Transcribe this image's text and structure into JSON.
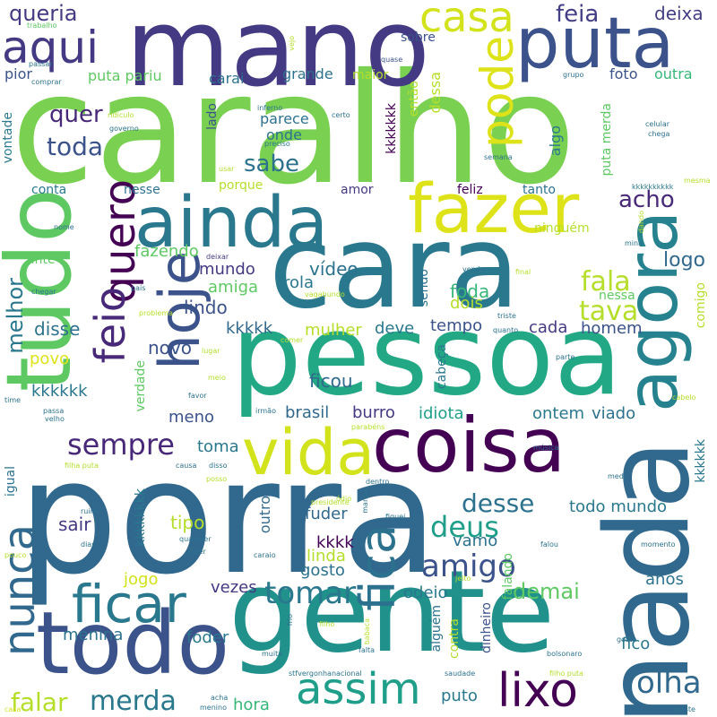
{
  "words": [
    {
      "text": "porra",
      "color": "#31688e",
      "rot": 0
    },
    {
      "text": "caralho",
      "color": "#7ad151",
      "rot": 0
    },
    {
      "text": "mano",
      "color": "#443983",
      "rot": 0
    },
    {
      "text": "gente",
      "color": "#21918c",
      "rot": 0
    },
    {
      "text": "pessoa",
      "color": "#22a884",
      "rot": 0
    },
    {
      "text": "cara",
      "color": "#2a788e",
      "rot": 0
    },
    {
      "text": "nada",
      "color": "#31688e",
      "rot": 90
    },
    {
      "text": "tudo",
      "color": "#5ec962",
      "rot": 90
    },
    {
      "text": "coisa",
      "color": "#440154",
      "rot": 0
    },
    {
      "text": "todo",
      "color": "#3b528b",
      "rot": 0
    },
    {
      "text": "ainda",
      "color": "#2a788e",
      "rot": 0
    },
    {
      "text": "fazer",
      "color": "#dde318",
      "rot": 0
    },
    {
      "text": "puta",
      "color": "#3b528b",
      "rot": 0
    },
    {
      "text": "agora",
      "color": "#26828e",
      "rot": 90
    },
    {
      "text": "vida",
      "color": "#d2e21b",
      "rot": 0
    },
    {
      "text": "hoje",
      "color": "#3b528b",
      "rot": 90
    },
    {
      "text": "quero",
      "color": "#440154",
      "rot": 90
    },
    {
      "text": "feio",
      "color": "#482878",
      "rot": 90
    },
    {
      "text": "pode",
      "color": "#dde318",
      "rot": 90
    },
    {
      "text": "casa",
      "color": "#d2e21b",
      "rot": 0
    },
    {
      "text": "aqui",
      "color": "#443983",
      "rot": 0
    },
    {
      "text": "ficar",
      "color": "#2a788e",
      "rot": 0
    },
    {
      "text": "nunca",
      "color": "#31688e",
      "rot": 90
    },
    {
      "text": "fica",
      "color": "#2c728e",
      "rot": 90
    },
    {
      "text": "assim",
      "color": "#1f9e89",
      "rot": 0
    },
    {
      "text": "lixo",
      "color": "#440154",
      "rot": 0
    },
    {
      "text": "sempre",
      "color": "#482878",
      "rot": 0
    },
    {
      "text": "tomar",
      "color": "#2a788e",
      "rot": 0
    },
    {
      "text": "amigo",
      "color": "#3b528b",
      "rot": 0
    },
    {
      "text": "deus",
      "color": "#1f9e89",
      "rot": 0
    },
    {
      "text": "desse",
      "color": "#2c728e",
      "rot": 0
    },
    {
      "text": "olha",
      "color": "#31688e",
      "rot": 0
    },
    {
      "text": "merda",
      "color": "#2a788e",
      "rot": 0
    },
    {
      "text": "falar",
      "color": "#b5de2b",
      "rot": 0
    },
    {
      "text": "queria",
      "color": "#443983",
      "rot": 0
    },
    {
      "text": "feia",
      "color": "#433e85",
      "rot": 0
    },
    {
      "text": "deixa",
      "color": "#433e85",
      "rot": 0
    },
    {
      "text": "quer",
      "color": "#482878",
      "rot": 0
    },
    {
      "text": "toda",
      "color": "#3b528b",
      "rot": 0
    },
    {
      "text": "sabe",
      "color": "#2c728e",
      "rot": 0
    },
    {
      "text": "acho",
      "color": "#482878",
      "rot": 0
    },
    {
      "text": "fala",
      "color": "#b5de2b",
      "rot": 0
    },
    {
      "text": "tava",
      "color": "#b5de2b",
      "rot": 0
    },
    {
      "text": "logo",
      "color": "#31688e",
      "rot": 0
    },
    {
      "text": "vídeo",
      "color": "#2c728e",
      "rot": 0
    },
    {
      "text": "rola",
      "color": "#2a788e",
      "rot": 0
    },
    {
      "text": "foda",
      "color": "#35b779",
      "rot": 0
    },
    {
      "text": "dois",
      "color": "#b5de2b",
      "rot": 0
    },
    {
      "text": "melhor",
      "color": "#2a788e",
      "rot": 90
    },
    {
      "text": "lindo",
      "color": "#3b528b",
      "rot": 0
    },
    {
      "text": "amiga",
      "color": "#5ec962",
      "rot": 0
    },
    {
      "text": "mundo",
      "color": "#443983",
      "rot": 0
    },
    {
      "text": "fazendo",
      "color": "#5ec962",
      "rot": 0
    },
    {
      "text": "kkkkk",
      "color": "#31688e",
      "rot": 0
    },
    {
      "text": "disse",
      "color": "#2c728e",
      "rot": 0
    },
    {
      "text": "kkkkkk",
      "color": "#2a788e",
      "rot": 0
    },
    {
      "text": "povo",
      "color": "#dde318",
      "rot": 0
    },
    {
      "text": "novo",
      "color": "#3b528b",
      "rot": 0
    },
    {
      "text": "ficou",
      "color": "#31688e",
      "rot": 0
    },
    {
      "text": "mulher",
      "color": "#b5de2b",
      "rot": 0
    },
    {
      "text": "deve",
      "color": "#2a788e",
      "rot": 0
    },
    {
      "text": "tempo",
      "color": "#3b528b",
      "rot": 0
    },
    {
      "text": "cada",
      "color": "#443983",
      "rot": 0
    },
    {
      "text": "homem",
      "color": "#3b528b",
      "rot": 0
    },
    {
      "text": "brasil",
      "color": "#31688e",
      "rot": 0
    },
    {
      "text": "burro",
      "color": "#443983",
      "rot": 0
    },
    {
      "text": "idiota",
      "color": "#1f9e89",
      "rot": 0
    },
    {
      "text": "ontem",
      "color": "#2a788e",
      "rot": 0
    },
    {
      "text": "viado",
      "color": "#2c728e",
      "rot": 0
    },
    {
      "text": "meno",
      "color": "#3b528b",
      "rot": 0
    },
    {
      "text": "toma",
      "color": "#2a788e",
      "rot": 0
    },
    {
      "text": "tipo",
      "color": "#b5de2b",
      "rot": 0
    },
    {
      "text": "sair",
      "color": "#443983",
      "rot": 0
    },
    {
      "text": "fuder",
      "color": "#31688e",
      "rot": 0
    },
    {
      "text": "kkkk",
      "color": "#440154",
      "rot": 0
    },
    {
      "text": "vamo",
      "color": "#2c728e",
      "rot": 0
    },
    {
      "text": "todo mundo",
      "color": "#2a788e",
      "rot": 0
    },
    {
      "text": "gosto",
      "color": "#2c728e",
      "rot": 0
    },
    {
      "text": "linda",
      "color": "#b5de2b",
      "rot": 0
    },
    {
      "text": "odeio",
      "color": "#2a788e",
      "rot": 0
    },
    {
      "text": "demai",
      "color": "#5ec962",
      "rot": 0
    },
    {
      "text": "jogo",
      "color": "#d2e21b",
      "rot": 0
    },
    {
      "text": "vezes",
      "color": "#443983",
      "rot": 0
    },
    {
      "text": "menina",
      "color": "#2c728e",
      "rot": 0
    },
    {
      "text": "foder",
      "color": "#2a788e",
      "rot": 0
    },
    {
      "text": "anos",
      "color": "#2c728e",
      "rot": 0
    },
    {
      "text": "hora",
      "color": "#35b779",
      "rot": 0
    },
    {
      "text": "fico",
      "color": "#2a788e",
      "rot": 0
    },
    {
      "text": "puto",
      "color": "#2a788e",
      "rot": 0
    },
    {
      "text": "casa",
      "color": "#d2e21b",
      "rot": 0
    },
    {
      "text": "sobre",
      "color": "#3b528b",
      "rot": 0
    },
    {
      "text": "foto",
      "color": "#3b528b",
      "rot": 0
    },
    {
      "text": "outra",
      "color": "#35b779",
      "rot": 0
    },
    {
      "text": "pior",
      "color": "#3b528b",
      "rot": 0
    },
    {
      "text": "puta pariu",
      "color": "#5ec962",
      "rot": 0
    },
    {
      "text": "carai",
      "color": "#2c728e",
      "rot": 0
    },
    {
      "text": "grande",
      "color": "#2c728e",
      "rot": 0
    },
    {
      "text": "maior",
      "color": "#b5de2b",
      "rot": 0
    },
    {
      "text": "dessa",
      "color": "#b5de2b",
      "rot": 90
    },
    {
      "text": "então",
      "color": "#b5de2b",
      "rot": 90
    },
    {
      "text": "kkkkkkk",
      "color": "#440154",
      "rot": 90
    },
    {
      "text": "lado",
      "color": "#3b528b",
      "rot": 90
    },
    {
      "text": "parece",
      "color": "#2c728e",
      "rot": 0
    },
    {
      "text": "onde",
      "color": "#2c728e",
      "rot": 0
    },
    {
      "text": "algo",
      "color": "#2a788e",
      "rot": 90
    },
    {
      "text": "puta merda",
      "color": "#5ec962",
      "rot": 90
    },
    {
      "text": "vontade",
      "color": "#2a788e",
      "rot": 90
    },
    {
      "text": "conta",
      "color": "#2a788e",
      "rot": 0
    },
    {
      "text": "nesse",
      "color": "#2c728e",
      "rot": 0
    },
    {
      "text": "porque",
      "color": "#b5de2b",
      "rot": 0
    },
    {
      "text": "amor",
      "color": "#443983",
      "rot": 0
    },
    {
      "text": "feliz",
      "color": "#440154",
      "rot": 0
    },
    {
      "text": "tanto",
      "color": "#2c728e",
      "rot": 0
    },
    {
      "text": "ninguém",
      "color": "#b5de2b",
      "rot": 0
    },
    {
      "text": "nessa",
      "color": "#5ec962",
      "rot": 0
    },
    {
      "text": "comigo",
      "color": "#b5de2b",
      "rot": 90
    },
    {
      "text": "ante",
      "color": "#5ec962",
      "rot": 0
    },
    {
      "text": "sendo",
      "color": "#2c728e",
      "rot": 90
    },
    {
      "text": "cabeça",
      "color": "#2a788e",
      "rot": 90
    },
    {
      "text": "verdade",
      "color": "#5ec962",
      "rot": 90
    },
    {
      "text": "igual",
      "color": "#2c728e",
      "rot": 90
    },
    {
      "text": "kkkkkkkk",
      "color": "#2a788e",
      "rot": 90
    },
    {
      "text": "outro",
      "color": "#31688e",
      "rot": 90
    },
    {
      "text": "alguém",
      "color": "#2c728e",
      "rot": 90
    },
    {
      "text": "falando",
      "color": "#5ec962",
      "rot": 90
    },
    {
      "text": "contra",
      "color": "#b5de2b",
      "rot": 90
    },
    {
      "text": "dinheiro",
      "color": "#3b528b",
      "rot": 90
    },
    {
      "text": "kkkkkk",
      "color": "#2a788e",
      "rot": 90
    },
    {
      "text": "trabalho",
      "color": "#5ec962",
      "rot": 0
    },
    {
      "text": "passar",
      "color": "#2c728e",
      "rot": 0
    },
    {
      "text": "comprar",
      "color": "#2c728e",
      "rot": 0
    },
    {
      "text": "vejo",
      "color": "#b5de2b",
      "rot": 90
    },
    {
      "text": "quase",
      "color": "#3b528b",
      "rot": 0
    },
    {
      "text": "grupo",
      "color": "#2c728e",
      "rot": 0
    },
    {
      "text": "ridículo",
      "color": "#b5de2b",
      "rot": 0
    },
    {
      "text": "governo",
      "color": "#2c728e",
      "rot": 0
    },
    {
      "text": "inferno",
      "color": "#2c728e",
      "rot": 0
    },
    {
      "text": "preciso",
      "color": "#2a788e",
      "rot": 0
    },
    {
      "text": "certo",
      "color": "#2c728e",
      "rot": 0
    },
    {
      "text": "celular",
      "color": "#2c728e",
      "rot": 0
    },
    {
      "text": "chega",
      "color": "#2c728e",
      "rot": 0
    },
    {
      "text": "semana",
      "color": "#2c728e",
      "rot": 0
    },
    {
      "text": "usar",
      "color": "#b5de2b",
      "rot": 0
    },
    {
      "text": "kkkkkkkkkk",
      "color": "#2a788e",
      "rot": 0
    },
    {
      "text": "mesma",
      "color": "#b5de2b",
      "rot": 0
    },
    {
      "text": "dando",
      "color": "#b5de2b",
      "rot": 90
    },
    {
      "text": "nome",
      "color": "#2c728e",
      "rot": 0
    },
    {
      "text": "deixar",
      "color": "#443983",
      "rot": 0
    },
    {
      "text": "mina",
      "color": "#2c728e",
      "rot": 0
    },
    {
      "text": "vendo",
      "color": "#2c728e",
      "rot": 0
    },
    {
      "text": "final",
      "color": "#b5de2b",
      "rot": 0
    },
    {
      "text": "chegar",
      "color": "#2c728e",
      "rot": 0
    },
    {
      "text": "país",
      "color": "#2c728e",
      "rot": 0
    },
    {
      "text": "vagabundo",
      "color": "#b5de2b",
      "rot": 0
    },
    {
      "text": "problema",
      "color": "#b5de2b",
      "rot": 0
    },
    {
      "text": "triste",
      "color": "#2c728e",
      "rot": 0
    },
    {
      "text": "quanto",
      "color": "#2c728e",
      "rot": 0
    },
    {
      "text": "comer",
      "color": "#b5de2b",
      "rot": 0
    },
    {
      "text": "lugar",
      "color": "#b5de2b",
      "rot": 0
    },
    {
      "text": "meio",
      "color": "#b5de2b",
      "rot": 0
    },
    {
      "text": "parte",
      "color": "#2c728e",
      "rot": 0
    },
    {
      "text": "favor",
      "color": "#2c728e",
      "rot": 0
    },
    {
      "text": "time",
      "color": "#2c728e",
      "rot": 0
    },
    {
      "text": "passa",
      "color": "#2c728e",
      "rot": 0
    },
    {
      "text": "velho",
      "color": "#2c728e",
      "rot": 0
    },
    {
      "text": "irmão",
      "color": "#2c728e",
      "rot": 0
    },
    {
      "text": "cabelo",
      "color": "#b5de2b",
      "rot": 0
    },
    {
      "text": "parabéns",
      "color": "#b5de2b",
      "rot": 0
    },
    {
      "text": "música",
      "color": "#2c728e",
      "rot": 0
    },
    {
      "text": "filha puta",
      "color": "#b5de2b",
      "rot": 0
    },
    {
      "text": "causa",
      "color": "#2c728e",
      "rot": 0
    },
    {
      "text": "disso",
      "color": "#2c728e",
      "rot": 0
    },
    {
      "text": "medo",
      "color": "#2c728e",
      "rot": 0
    },
    {
      "text": "dentro",
      "color": "#2c728e",
      "rot": 0
    },
    {
      "text": "posso",
      "color": "#b5de2b",
      "rot": 0
    },
    {
      "text": "manda",
      "color": "#2c728e",
      "rot": 90
    },
    {
      "text": "ódio",
      "color": "#b5de2b",
      "rot": 0
    },
    {
      "text": "presidente",
      "color": "#b5de2b",
      "rot": 0
    },
    {
      "text": "ruim",
      "color": "#2c728e",
      "rot": 0
    },
    {
      "text": "fiquei",
      "color": "#2c728e",
      "rot": 0
    },
    {
      "text": "falou",
      "color": "#2c728e",
      "rot": 0
    },
    {
      "text": "momento",
      "color": "#2c728e",
      "rot": 0
    },
    {
      "text": "dias",
      "color": "#2c728e",
      "rot": 0
    },
    {
      "text": "qualquer",
      "color": "#2c728e",
      "rot": 0
    },
    {
      "text": "pouco",
      "color": "#b5de2b",
      "rot": 0
    },
    {
      "text": "dizer",
      "color": "#2c728e",
      "rot": 0
    },
    {
      "text": "caraio",
      "color": "#2c728e",
      "rot": 0
    },
    {
      "text": "jeito",
      "color": "#b5de2b",
      "rot": 0
    },
    {
      "text": "frio",
      "color": "#2c728e",
      "rot": 90
    },
    {
      "text": "filho",
      "color": "#b5de2b",
      "rot": 0
    },
    {
      "text": "babaca",
      "color": "#b5de2b",
      "rot": 90
    },
    {
      "text": "muita",
      "color": "#2c728e",
      "rot": 0
    },
    {
      "text": "falta",
      "color": "#2c728e",
      "rot": 0
    },
    {
      "text": "bolsonaro",
      "color": "#2c728e",
      "rot": 0
    },
    {
      "text": "gosta",
      "color": "#2c728e",
      "rot": 0
    },
    {
      "text": "stfvergonhanacional",
      "color": "#2c728e",
      "rot": 0
    },
    {
      "text": "saudade",
      "color": "#2c728e",
      "rot": 0
    },
    {
      "text": "filho puta",
      "color": "#b5de2b",
      "rot": 0
    },
    {
      "text": "acha",
      "color": "#2c728e",
      "rot": 0
    },
    {
      "text": "menino",
      "color": "#2c728e",
      "rot": 0
    },
    {
      "text": "existe",
      "color": "#2c728e",
      "rot": 0
    }
  ]
}
